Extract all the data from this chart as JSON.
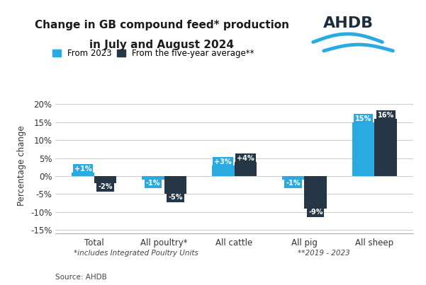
{
  "title_line1": "Change in GB compound feed* production",
  "title_line2": "in July and August 2024",
  "categories": [
    "Total",
    "All poultry*",
    "All cattle",
    "All pig",
    "All sheep"
  ],
  "from_2023": [
    1,
    -1,
    3,
    -1,
    15
  ],
  "from_5yr_avg": [
    -2,
    -5,
    4,
    -9,
    16
  ],
  "labels_2023": [
    "+1%",
    "-1%",
    "+3%",
    "-1%",
    "15%"
  ],
  "labels_5yr": [
    "-2%",
    "-5%",
    "+4%",
    "-9%",
    "16%"
  ],
  "color_2023": "#29ABE2",
  "color_5yr": "#253746",
  "ylabel": "Percentage change",
  "ylim": [
    -16,
    22
  ],
  "yticks": [
    -15,
    -10,
    -5,
    0,
    5,
    10,
    15,
    20
  ],
  "ytick_labels": [
    "-15%",
    "-10%",
    "-5%",
    "0%",
    "5%",
    "10%",
    "15%",
    "20%"
  ],
  "legend_label_2023": "From 2023",
  "legend_label_5yr": "From the five-year average**",
  "footnote1": "*includes Integrated Poultry Units",
  "footnote2": "**2019 - 2023",
  "source": "Source: AHDB",
  "background_color": "#FFFFFF",
  "bar_width": 0.32
}
